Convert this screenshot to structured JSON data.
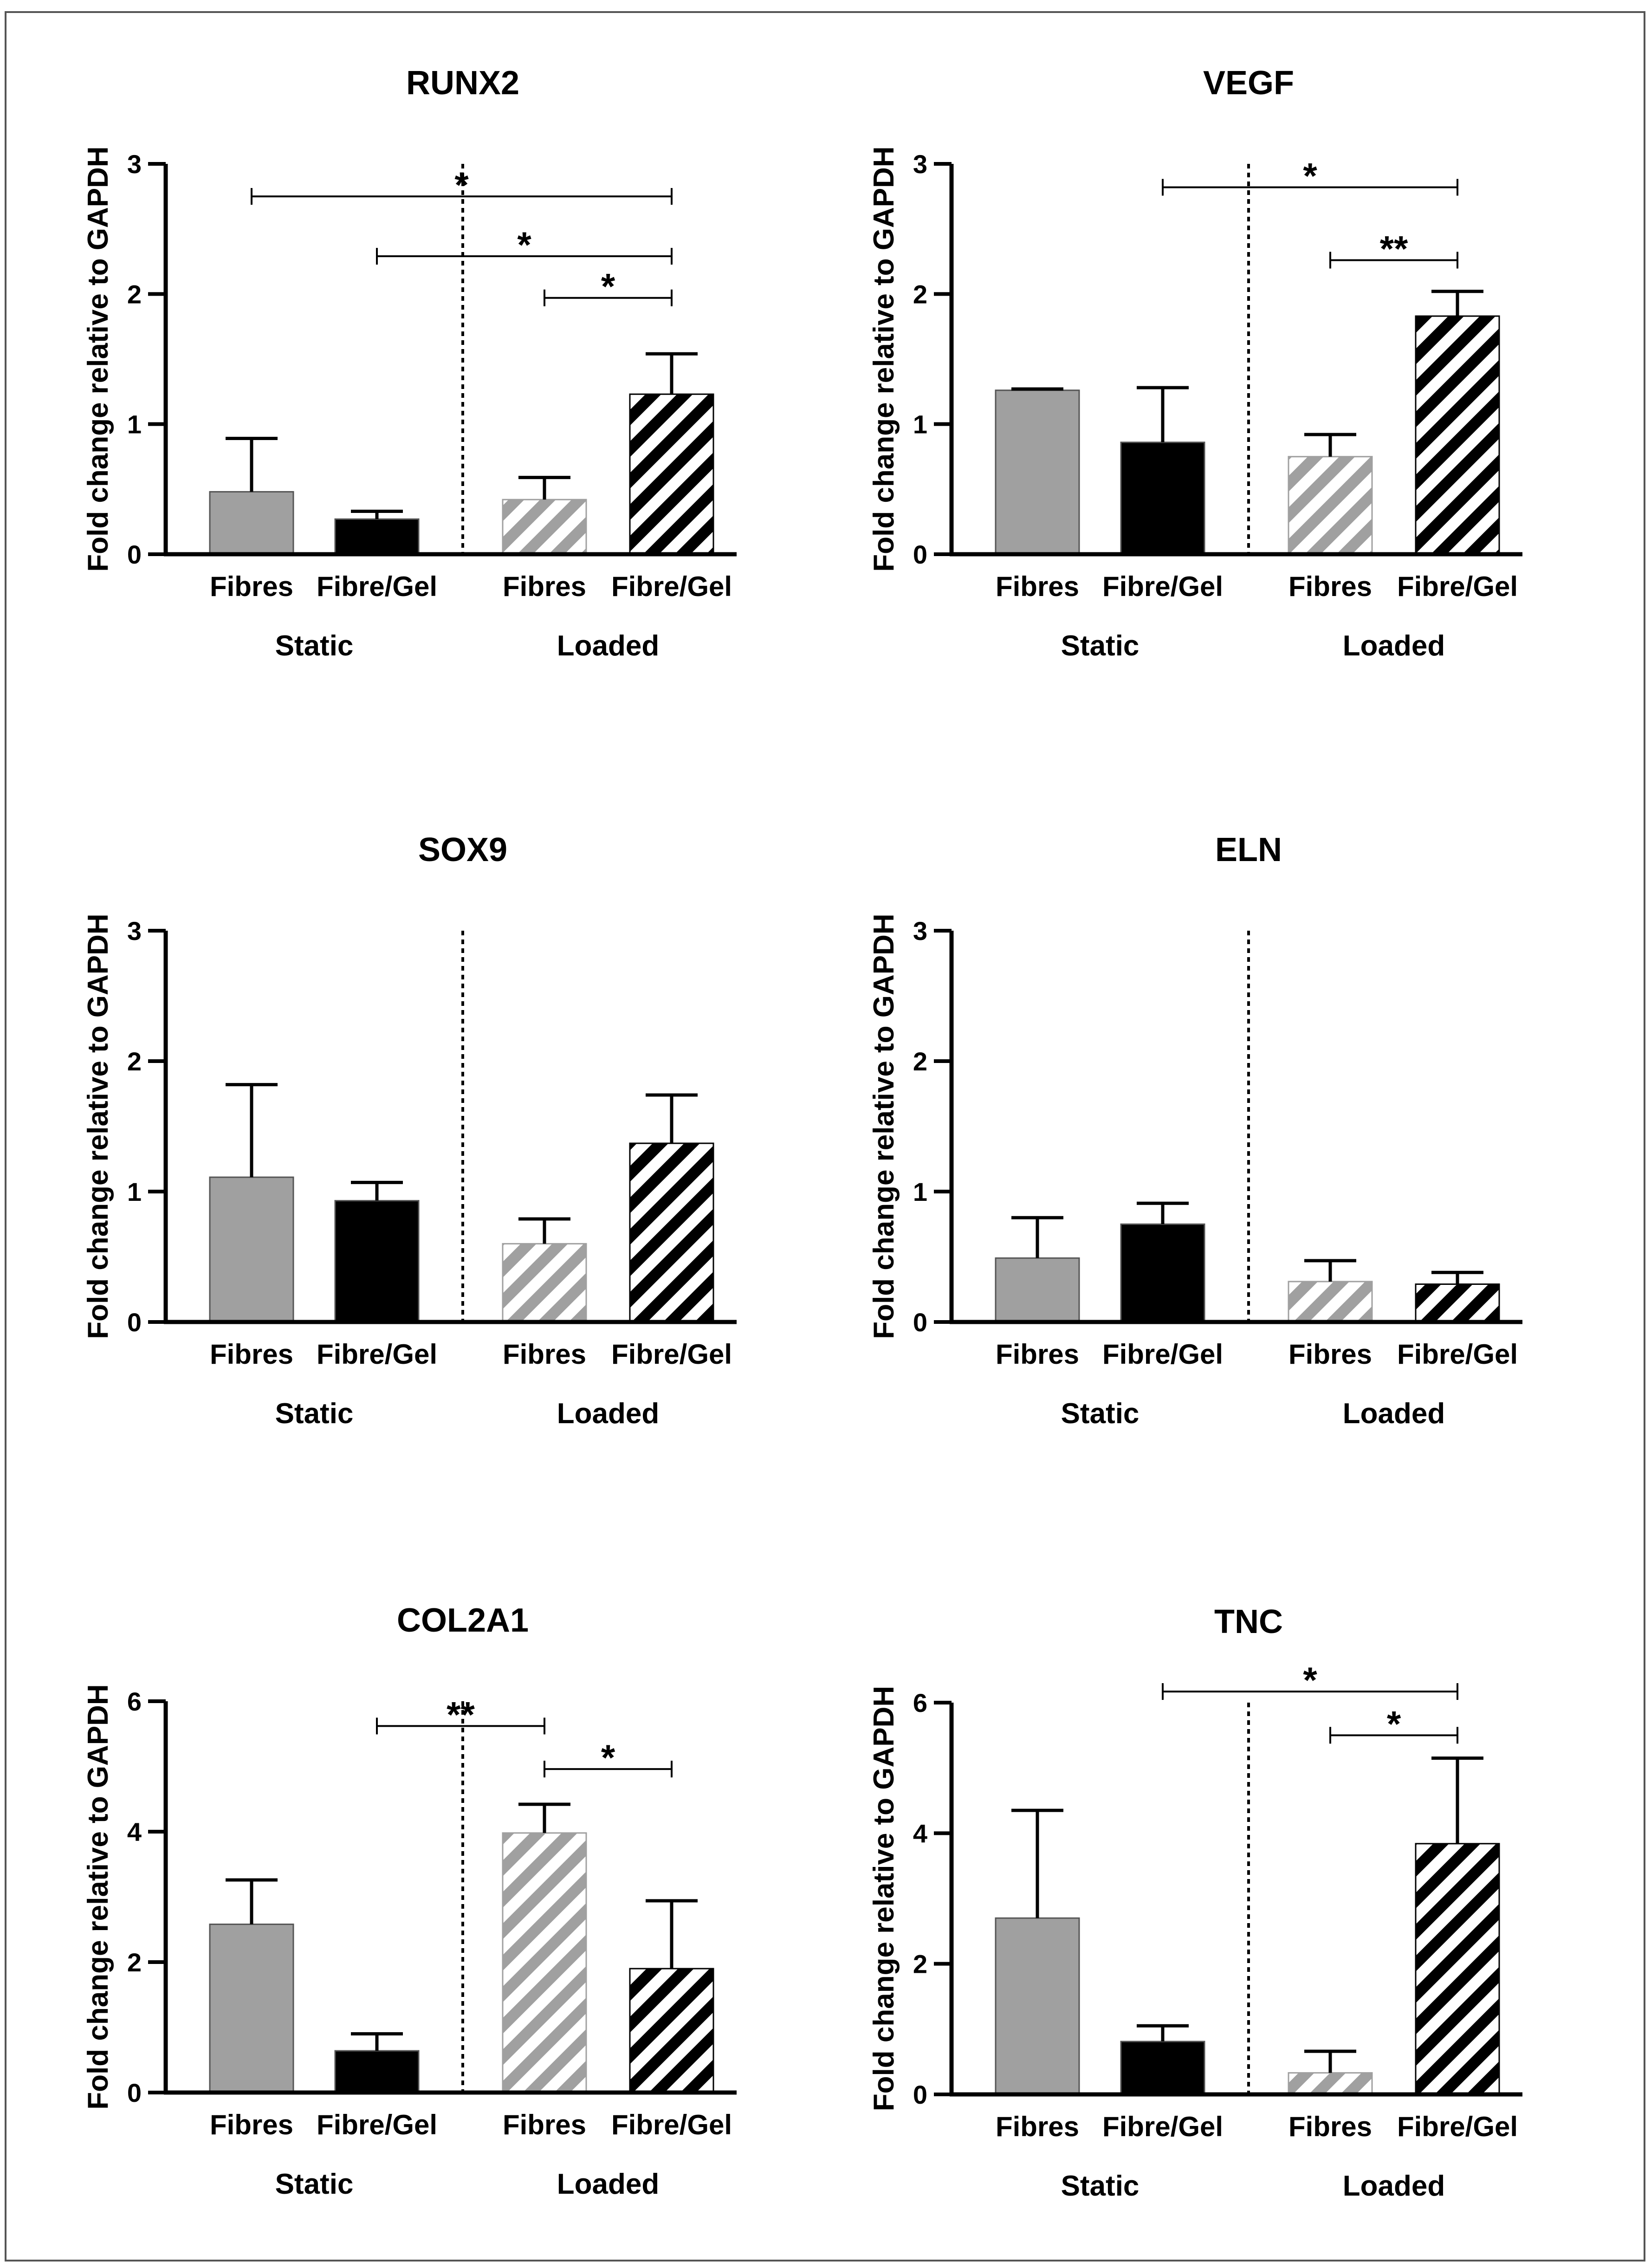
{
  "chart_data": [
    {
      "type": "bar",
      "title": "RUNX2",
      "ylabel": "Fold change relative to GAPDH",
      "ylim": [
        0,
        3
      ],
      "yticks": [
        "0",
        "1",
        "2",
        "3"
      ],
      "categories": [
        "Fibres",
        "Fibre/Gel",
        "Fibres",
        "Fibre/Gel"
      ],
      "groups": [
        "Static",
        "Loaded"
      ],
      "values": [
        0.48,
        0.27,
        0.42,
        1.23
      ],
      "errors": [
        0.41,
        0.06,
        0.17,
        0.31
      ],
      "significance": [
        {
          "from": 0,
          "to": 3,
          "label": "*",
          "y": 2.75
        },
        {
          "from": 1,
          "to": 3,
          "label": "*",
          "y": 2.29
        },
        {
          "from": 2,
          "to": 3,
          "label": "*",
          "y": 1.97
        }
      ]
    },
    {
      "type": "bar",
      "title": "VEGF",
      "ylabel": "Fold change relative to GAPDH",
      "ylim": [
        0,
        3
      ],
      "yticks": [
        "0",
        "1",
        "2",
        "3"
      ],
      "categories": [
        "Fibres",
        "Fibre/Gel",
        "Fibres",
        "Fibre/Gel"
      ],
      "groups": [
        "Static",
        "Loaded"
      ],
      "values": [
        1.26,
        0.86,
        0.75,
        1.83
      ],
      "errors": [
        0.01,
        0.42,
        0.17,
        0.19
      ],
      "significance": [
        {
          "from": 1,
          "to": 3,
          "label": "*",
          "y": 2.82
        },
        {
          "from": 2,
          "to": 3,
          "label": "**",
          "y": 2.26
        }
      ]
    },
    {
      "type": "bar",
      "title": "SOX9",
      "ylabel": "Fold change relative to GAPDH",
      "ylim": [
        0,
        3
      ],
      "yticks": [
        "0",
        "1",
        "2",
        "3"
      ],
      "categories": [
        "Fibres",
        "Fibre/Gel",
        "Fibres",
        "Fibre/Gel"
      ],
      "groups": [
        "Static",
        "Loaded"
      ],
      "values": [
        1.11,
        0.93,
        0.6,
        1.37
      ],
      "errors": [
        0.71,
        0.14,
        0.19,
        0.37
      ],
      "significance": []
    },
    {
      "type": "bar",
      "title": "ELN",
      "ylabel": "Fold change relative to GAPDH",
      "ylim": [
        0,
        3
      ],
      "yticks": [
        "0",
        "1",
        "2",
        "3"
      ],
      "categories": [
        "Fibres",
        "Fibre/Gel",
        "Fibres",
        "Fibre/Gel"
      ],
      "groups": [
        "Static",
        "Loaded"
      ],
      "values": [
        0.49,
        0.75,
        0.31,
        0.29
      ],
      "errors": [
        0.31,
        0.16,
        0.16,
        0.09
      ],
      "significance": []
    },
    {
      "type": "bar",
      "title": "COL2A1",
      "ylabel": "Fold change relative to GAPDH",
      "ylim": [
        0,
        6
      ],
      "yticks": [
        "0",
        "2",
        "4",
        "6"
      ],
      "categories": [
        "Fibres",
        "Fibre/Gel",
        "Fibres",
        "Fibre/Gel"
      ],
      "groups": [
        "Static",
        "Loaded"
      ],
      "values": [
        2.58,
        0.64,
        3.98,
        1.9
      ],
      "errors": [
        0.68,
        0.26,
        0.44,
        1.04
      ],
      "significance": [
        {
          "from": 1,
          "to": 2,
          "label": "**",
          "y": 5.62
        },
        {
          "from": 2,
          "to": 3,
          "label": "*",
          "y": 4.96
        }
      ]
    },
    {
      "type": "bar",
      "title": "TNC",
      "ylabel": "Fold change relative to GAPDH",
      "ylim": [
        0,
        6
      ],
      "yticks": [
        "0",
        "2",
        "4",
        "6"
      ],
      "categories": [
        "Fibres",
        "Fibre/Gel",
        "Fibres",
        "Fibre/Gel"
      ],
      "groups": [
        "Static",
        "Loaded"
      ],
      "values": [
        2.7,
        0.81,
        0.33,
        3.84
      ],
      "errors": [
        1.65,
        0.24,
        0.33,
        1.31
      ],
      "significance": [
        {
          "from": 1,
          "to": 3,
          "label": "*",
          "y": 6.17
        },
        {
          "from": 2,
          "to": 3,
          "label": "*",
          "y": 5.5
        }
      ]
    }
  ],
  "bar_styles": [
    {
      "fill": "#a0a0a0",
      "hatch": false
    },
    {
      "fill": "#000000",
      "hatch": false
    },
    {
      "fill": "#ffffff",
      "hatch": true,
      "stripe": "#a0a0a0"
    },
    {
      "fill": "#ffffff",
      "hatch": true,
      "stripe": "#000000"
    }
  ],
  "colors": {
    "frame": "#555555",
    "axis": "#000000",
    "light_bar": "#a0a0a0",
    "dark_bar": "#000000"
  }
}
